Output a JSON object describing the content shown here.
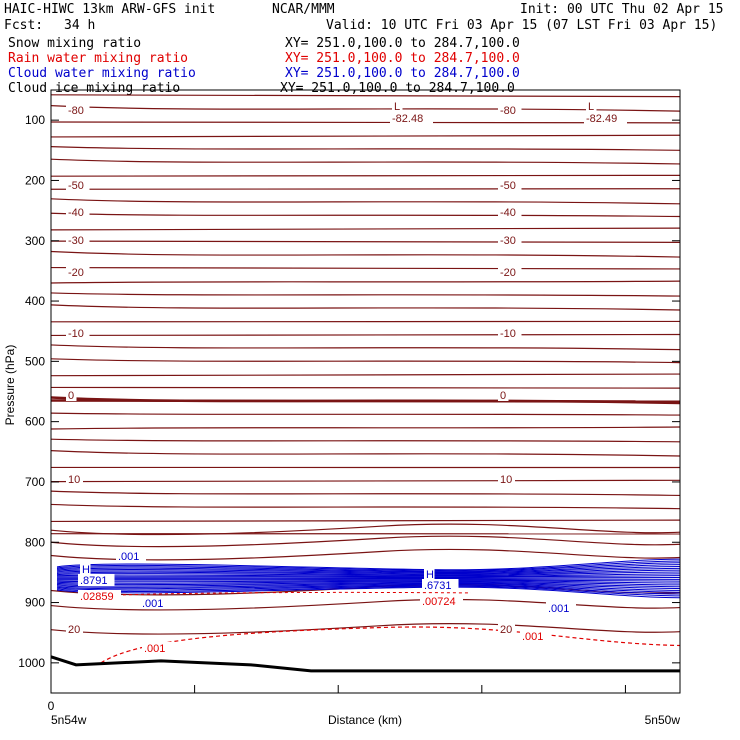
{
  "header": {
    "model": "HAIC-HIWC 13km ARW-GFS init",
    "org": "NCAR/MMM",
    "init": "Init: 00 UTC Thu 02 Apr 15",
    "fcst_label": "Fcst:",
    "fcst_value": "34 h",
    "valid": "Valid: 10 UTC Fri 03 Apr 15 (07 LST Fri 03 Apr 15)"
  },
  "legend": [
    {
      "name": "Snow mixing ratio",
      "xy": "XY= 251.0,100.0 to 284.7,100.0",
      "color": "#000000"
    },
    {
      "name": "Rain water mixing ratio",
      "xy": "XY= 251.0,100.0 to 284.7,100.0",
      "color": "#e00000"
    },
    {
      "name": "Cloud water mixing ratio",
      "xy": "XY= 251.0,100.0 to 284.7,100.0",
      "color": "#0000cc"
    },
    {
      "name": "Cloud ice mixing ratio",
      "xy": "XY= 251.0,100.0 to 284.7,100.0",
      "color": "#000000"
    }
  ],
  "chart_data": {
    "type": "line",
    "xlabel": "Distance (km)",
    "ylabel": "Pressure (hPa)",
    "x_origin_label": "0",
    "x_left_label": "5n54w",
    "x_right_label": "5n50w",
    "yticks": [
      100,
      200,
      300,
      400,
      500,
      600,
      700,
      800,
      900,
      1000
    ],
    "ylim": [
      50,
      1050
    ],
    "temperature_contours": [
      {
        "value": -80,
        "label": "-80"
      },
      {
        "value": -50,
        "label": "-50"
      },
      {
        "value": -40,
        "label": "-40"
      },
      {
        "value": -30,
        "label": "-30"
      },
      {
        "value": -20,
        "label": "-20"
      },
      {
        "value": -10,
        "label": "-10"
      },
      {
        "value": 0,
        "label": "0"
      },
      {
        "value": 10,
        "label": "10"
      },
      {
        "value": 20,
        "label": "20"
      }
    ],
    "annotations": [
      {
        "text": "L",
        "value": "-82.48"
      },
      {
        "text": "L",
        "value": "-82.49"
      },
      {
        "text": "H",
        "value": ".8791",
        "series": "Cloud water mixing ratio"
      },
      {
        "text": "H",
        "value": ".6731",
        "series": "Cloud water mixing ratio"
      },
      {
        "text": ".02859",
        "series": "Rain water mixing ratio"
      },
      {
        "text": ".00724",
        "series": "Rain water mixing ratio"
      },
      {
        "text": ".001",
        "series": "Cloud water mixing ratio"
      },
      {
        "text": ".001",
        "series": "Cloud water mixing ratio"
      },
      {
        "text": ".001",
        "series": "Cloud water mixing ratio"
      },
      {
        "text": ".001",
        "series": "Rain water mixing ratio"
      },
      {
        "text": ".001",
        "series": "Rain water mixing ratio"
      }
    ],
    "colors": {
      "temperature": "#7a1414",
      "cloud_water": "#0000cc",
      "rain": "#e00000",
      "terrain": "#000000"
    }
  }
}
